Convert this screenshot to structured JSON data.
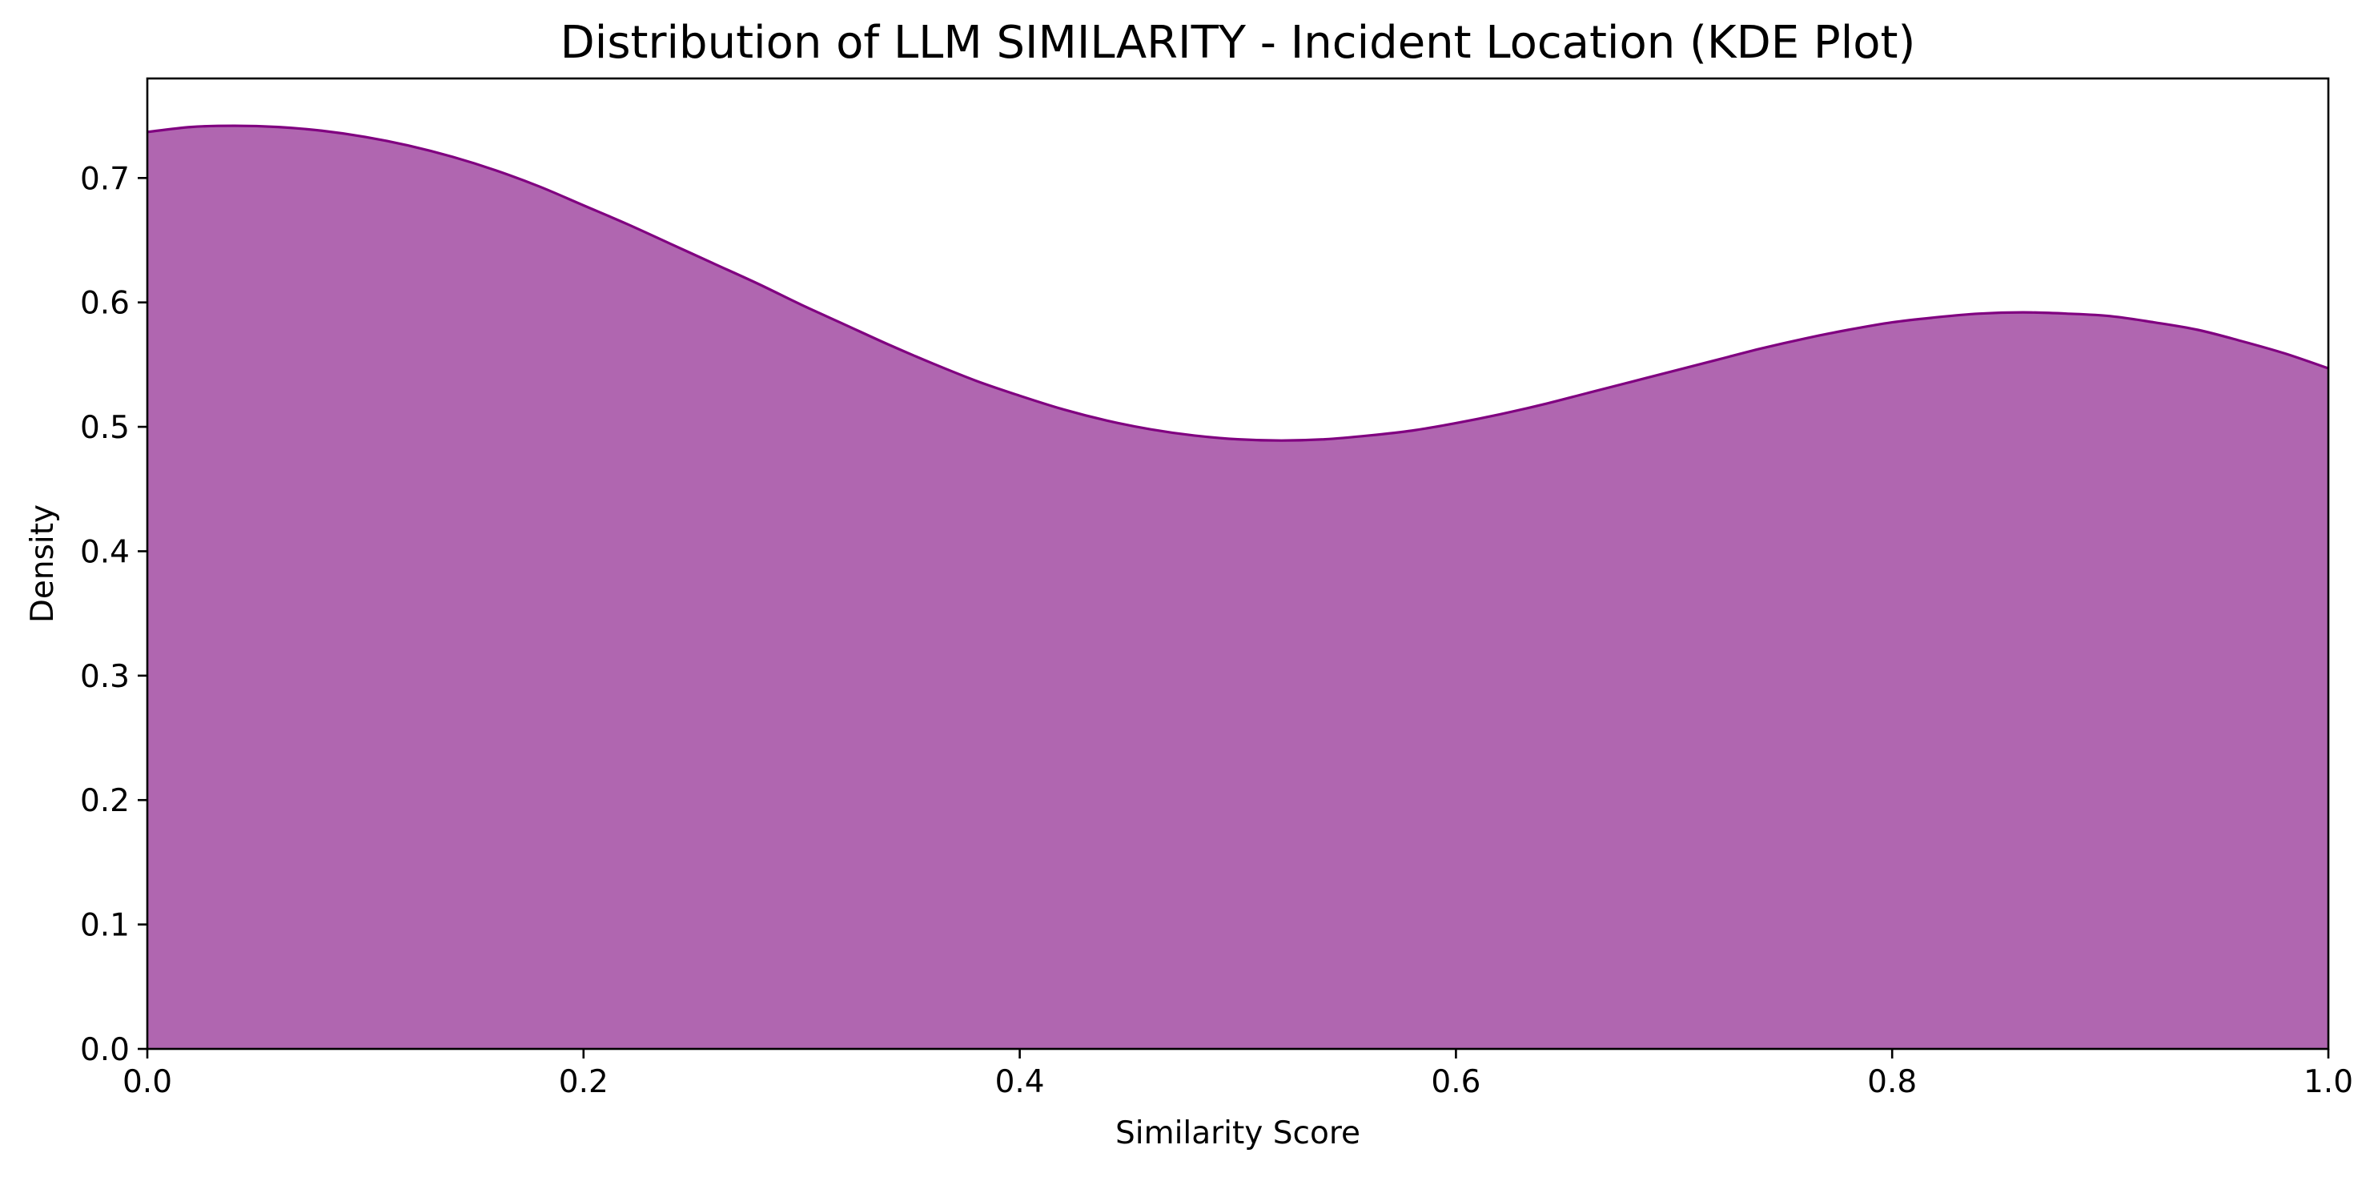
{
  "chart_data": {
    "type": "area",
    "title": "Distribution of LLM SIMILARITY - Incident Location (KDE Plot)",
    "xlabel": "Similarity Score",
    "ylabel": "Density",
    "xlim": [
      0.0,
      1.0
    ],
    "ylim": [
      0.0,
      0.78
    ],
    "xticks": [
      "0.0",
      "0.2",
      "0.4",
      "0.6",
      "0.8",
      "1.0"
    ],
    "yticks": [
      "0.0",
      "0.1",
      "0.2",
      "0.3",
      "0.4",
      "0.5",
      "0.6",
      "0.7"
    ],
    "grid": false,
    "legend": "none",
    "series": [
      {
        "fill_color": "#b066b0",
        "line_color": "#800080",
        "x": [
          0.0,
          0.02,
          0.04,
          0.06,
          0.08,
          0.1,
          0.12,
          0.14,
          0.16,
          0.18,
          0.2,
          0.22,
          0.24,
          0.26,
          0.28,
          0.3,
          0.32,
          0.34,
          0.36,
          0.38,
          0.4,
          0.42,
          0.44,
          0.46,
          0.48,
          0.5,
          0.52,
          0.54,
          0.56,
          0.58,
          0.6,
          0.62,
          0.64,
          0.66,
          0.68,
          0.7,
          0.72,
          0.74,
          0.76,
          0.78,
          0.8,
          0.82,
          0.84,
          0.86,
          0.88,
          0.9,
          0.92,
          0.94,
          0.96,
          0.98,
          1.0
        ],
        "y": [
          0.737,
          0.741,
          0.742,
          0.741,
          0.738,
          0.733,
          0.726,
          0.717,
          0.706,
          0.693,
          0.678,
          0.663,
          0.647,
          0.631,
          0.615,
          0.598,
          0.582,
          0.566,
          0.551,
          0.537,
          0.525,
          0.514,
          0.505,
          0.498,
          0.493,
          0.49,
          0.489,
          0.49,
          0.493,
          0.497,
          0.503,
          0.51,
          0.518,
          0.527,
          0.536,
          0.545,
          0.554,
          0.563,
          0.571,
          0.578,
          0.584,
          0.588,
          0.591,
          0.592,
          0.591,
          0.589,
          0.584,
          0.578,
          0.569,
          0.559,
          0.547
        ]
      }
    ]
  }
}
